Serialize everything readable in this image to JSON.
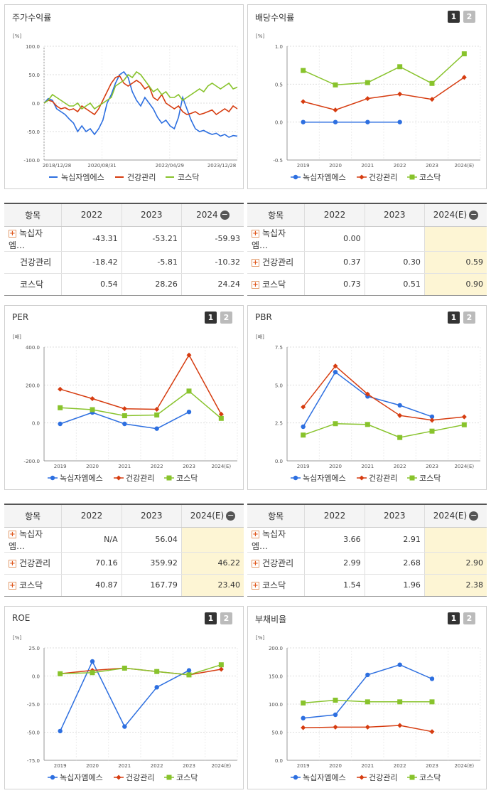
{
  "legend": {
    "s1": "녹십자엠에스",
    "s2": "건강관리",
    "s3": "코스닥"
  },
  "colors": {
    "s1": "#2d6fe0",
    "s2": "#d63c10",
    "s3": "#88c32c"
  },
  "panels": [
    {
      "id": "stock",
      "title": "주가수익률",
      "buttons": [],
      "chart_data": {
        "type": "line",
        "unit": "[%]",
        "yticks": [
          "100.0",
          "50.0",
          "0.0",
          "-50.0",
          "-100.0"
        ],
        "ylim": [
          -100,
          100
        ],
        "xlabels": [
          "2018/12/28",
          "2020/08/31",
          "2022/04/29",
          "2023/12/28"
        ],
        "series": [
          {
            "name": "녹십자엠에스",
            "markers": false,
            "values": [
              0,
              8,
              5,
              -10,
              -15,
              -20,
              -28,
              -35,
              -50,
              -40,
              -50,
              -45,
              -55,
              -45,
              -30,
              0,
              15,
              35,
              50,
              55,
              45,
              20,
              5,
              -5,
              10,
              0,
              -10,
              -25,
              -35,
              -30,
              -40,
              -45,
              -25,
              10,
              -10,
              -30,
              -45,
              -50,
              -48,
              -52,
              -55,
              -53,
              -58,
              -55,
              -60,
              -57,
              -58
            ]
          },
          {
            "name": "건강관리",
            "markers": false,
            "values": [
              0,
              5,
              3,
              -5,
              -10,
              -8,
              -12,
              -10,
              -15,
              -5,
              -10,
              -15,
              -20,
              -10,
              5,
              20,
              35,
              45,
              48,
              35,
              30,
              35,
              40,
              35,
              25,
              30,
              10,
              5,
              15,
              0,
              -5,
              -10,
              -5,
              -15,
              -20,
              -18,
              -15,
              -20,
              -18,
              -15,
              -12,
              -20,
              -15,
              -10,
              -15,
              -5,
              -10
            ]
          },
          {
            "name": "코스닥",
            "markers": false,
            "values": [
              0,
              5,
              15,
              10,
              5,
              0,
              -5,
              -5,
              0,
              -10,
              -5,
              0,
              -10,
              -5,
              0,
              5,
              10,
              30,
              35,
              40,
              50,
              45,
              55,
              50,
              40,
              30,
              20,
              25,
              15,
              20,
              10,
              10,
              15,
              5,
              10,
              15,
              20,
              25,
              20,
              30,
              35,
              30,
              25,
              30,
              35,
              25,
              28
            ]
          }
        ]
      },
      "table": {
        "header": [
          "항목",
          "2022",
          "2023",
          "2024"
        ],
        "minus_col": true,
        "highlight_last": false,
        "rows": [
          {
            "name": "녹십자엠…",
            "plus": true,
            "values": [
              "-43.31",
              "-53.21",
              "-59.93"
            ]
          },
          {
            "name": "건강관리",
            "plus": false,
            "values": [
              "-18.42",
              "-5.81",
              "-10.32"
            ]
          },
          {
            "name": "코스닥",
            "plus": false,
            "values": [
              "0.54",
              "28.26",
              "24.24"
            ]
          }
        ]
      }
    },
    {
      "id": "dividend",
      "title": "배당수익률",
      "buttons": [
        "1",
        "2"
      ],
      "chart_data": {
        "type": "line",
        "unit": "[%]",
        "yticks": [
          "1.0",
          "0.5",
          "0.0",
          "-0.5"
        ],
        "ylim": [
          -0.5,
          1.0
        ],
        "xlabels": [
          "2019",
          "2020",
          "2021",
          "2022",
          "2023",
          "2024(E)"
        ],
        "series": [
          {
            "name": "녹십자엠에스",
            "markers": true,
            "values": [
              0,
              0,
              0,
              0,
              null,
              null
            ]
          },
          {
            "name": "건강관리",
            "markers": true,
            "values": [
              0.27,
              0.16,
              0.31,
              0.37,
              0.3,
              0.59
            ]
          },
          {
            "name": "코스닥",
            "markers": true,
            "values": [
              0.68,
              0.49,
              0.52,
              0.73,
              0.51,
              0.9
            ]
          }
        ]
      },
      "table": {
        "header": [
          "항목",
          "2022",
          "2023",
          "2024(E)"
        ],
        "minus_col": true,
        "highlight_last": true,
        "rows": [
          {
            "name": "녹십자엠…",
            "plus": true,
            "values": [
              "0.00",
              "",
              ""
            ]
          },
          {
            "name": "건강관리",
            "plus": true,
            "values": [
              "0.37",
              "0.30",
              "0.59"
            ]
          },
          {
            "name": "코스닥",
            "plus": true,
            "values": [
              "0.73",
              "0.51",
              "0.90"
            ]
          }
        ]
      }
    },
    {
      "id": "per",
      "title": "PER",
      "buttons": [
        "1",
        "2"
      ],
      "chart_data": {
        "type": "line",
        "unit": "[배]",
        "yticks": [
          "400.0",
          "200.0",
          "0.0",
          "-200.0"
        ],
        "ylim": [
          -200,
          400
        ],
        "xlabels": [
          "2019",
          "2020",
          "2021",
          "2022",
          "2023",
          "2024(E)"
        ],
        "series": [
          {
            "name": "녹십자엠에스",
            "markers": true,
            "values": [
              -5,
              55,
              -5,
              -30,
              58,
              null
            ]
          },
          {
            "name": "건강관리",
            "markers": true,
            "values": [
              178,
              128,
              75,
              72,
              358,
              46
            ]
          },
          {
            "name": "코스닥",
            "markers": true,
            "values": [
              80,
              70,
              38,
              42,
              168,
              24
            ]
          }
        ]
      },
      "table": {
        "header": [
          "항목",
          "2022",
          "2023",
          "2024(E)"
        ],
        "minus_col": true,
        "highlight_last": true,
        "rows": [
          {
            "name": "녹십자엠…",
            "plus": true,
            "values": [
              "N/A",
              "56.04",
              ""
            ]
          },
          {
            "name": "건강관리",
            "plus": true,
            "values": [
              "70.16",
              "359.92",
              "46.22"
            ]
          },
          {
            "name": "코스닥",
            "plus": true,
            "values": [
              "40.87",
              "167.79",
              "23.40"
            ]
          }
        ]
      }
    },
    {
      "id": "pbr",
      "title": "PBR",
      "buttons": [
        "1",
        "2"
      ],
      "chart_data": {
        "type": "line",
        "unit": "[배]",
        "yticks": [
          "7.5",
          "5.0",
          "2.5",
          "0.0"
        ],
        "ylim": [
          0,
          7.5
        ],
        "xlabels": [
          "2019",
          "2020",
          "2021",
          "2022",
          "2023",
          "2024(E)"
        ],
        "series": [
          {
            "name": "녹십자엠에스",
            "markers": true,
            "values": [
              2.25,
              5.85,
              4.25,
              3.66,
              2.91,
              null
            ]
          },
          {
            "name": "건강관리",
            "markers": true,
            "values": [
              3.55,
              6.25,
              4.4,
              2.99,
              2.68,
              2.9
            ]
          },
          {
            "name": "코스닥",
            "markers": true,
            "values": [
              1.7,
              2.45,
              2.4,
              1.54,
              1.96,
              2.38
            ]
          }
        ]
      },
      "table": {
        "header": [
          "항목",
          "2022",
          "2023",
          "2024(E)"
        ],
        "minus_col": true,
        "highlight_last": true,
        "rows": [
          {
            "name": "녹십자엠…",
            "plus": true,
            "values": [
              "3.66",
              "2.91",
              ""
            ]
          },
          {
            "name": "건강관리",
            "plus": true,
            "values": [
              "2.99",
              "2.68",
              "2.90"
            ]
          },
          {
            "name": "코스닥",
            "plus": true,
            "values": [
              "1.54",
              "1.96",
              "2.38"
            ]
          }
        ]
      }
    },
    {
      "id": "roe",
      "title": "ROE",
      "buttons": [
        "1",
        "2"
      ],
      "chart_data": {
        "type": "line",
        "unit": "[%]",
        "yticks": [
          "25.0",
          "0.0",
          "-25.0",
          "-50.0",
          "-75.0"
        ],
        "ylim": [
          -75,
          25
        ],
        "xlabels": [
          "2019",
          "2020",
          "2021",
          "2022",
          "2023",
          "2024(E)"
        ],
        "series": [
          {
            "name": "녹십자엠에스",
            "markers": true,
            "values": [
              -49,
              13,
              -45,
              -10,
              5,
              null
            ]
          },
          {
            "name": "건강관리",
            "markers": true,
            "values": [
              2,
              5,
              7,
              4,
              1,
              6
            ]
          },
          {
            "name": "코스닥",
            "markers": true,
            "values": [
              2,
              3,
              7,
              4,
              1,
              10
            ]
          }
        ]
      },
      "table": null
    },
    {
      "id": "debt",
      "title": "부채비율",
      "buttons": [
        "1",
        "2"
      ],
      "chart_data": {
        "type": "line",
        "unit": "[%]",
        "yticks": [
          "200.0",
          "150.0",
          "100.0",
          "50.0",
          "0.0"
        ],
        "ylim": [
          0,
          200
        ],
        "xlabels": [
          "2019",
          "2020",
          "2021",
          "2022",
          "2023",
          "2024(E)"
        ],
        "series": [
          {
            "name": "녹십자엠에스",
            "markers": true,
            "values": [
              75,
              81,
              152,
              170,
              145,
              null
            ]
          },
          {
            "name": "건강관리",
            "markers": true,
            "values": [
              58,
              59,
              59,
              62,
              51,
              null
            ]
          },
          {
            "name": "코스닥",
            "markers": true,
            "values": [
              102,
              107,
              104,
              104,
              104,
              null
            ]
          }
        ]
      },
      "table": null
    }
  ]
}
